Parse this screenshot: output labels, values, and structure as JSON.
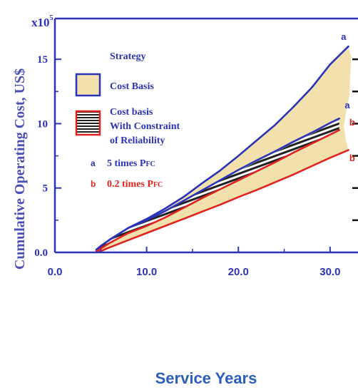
{
  "chart_data": {
    "type": "area",
    "title": "",
    "xlabel": "Service Years",
    "ylabel": "Cumulative Operating Cost, US$",
    "y_multiplier": "x10",
    "y_multiplier_exponent": "5",
    "xlim": [
      0,
      32.5
    ],
    "ylim": [
      0,
      17.5
    ],
    "x_ticks": [
      0,
      10,
      20,
      30
    ],
    "x_tick_labels": [
      "0.0",
      "10.0",
      "20.0",
      "30.0"
    ],
    "y_ticks": [
      0,
      5,
      10,
      15
    ],
    "y_tick_labels": [
      "0.0",
      "5",
      "10",
      "15"
    ],
    "grid": false,
    "legend_position": "top-left",
    "legend": {
      "title": "Strategy",
      "entries": [
        {
          "label": "Cost Basis",
          "style": "filled"
        },
        {
          "label_lines": [
            "Cost basis",
            "With Constraint",
            "of Reliability"
          ],
          "style": "hatched"
        }
      ],
      "notes": [
        {
          "letter": "a",
          "text": "5 times P",
          "sub": "FC",
          "color": "#2b33b8"
        },
        {
          "letter": "b",
          "text": "0.2 times P",
          "sub": "FC",
          "color": "#e0231f"
        }
      ]
    },
    "series": [
      {
        "name": "Cost Basis",
        "kind": "band",
        "color": "#f3e1ad",
        "upper": [
          [
            4.5,
            0.2
          ],
          [
            5,
            0.5
          ],
          [
            6,
            1.0
          ],
          [
            7,
            1.45
          ],
          [
            8,
            1.9
          ],
          [
            10,
            2.6
          ],
          [
            12,
            3.4
          ],
          [
            14,
            4.3
          ],
          [
            16,
            5.35
          ],
          [
            18,
            6.35
          ],
          [
            20,
            7.5
          ],
          [
            22,
            8.7
          ],
          [
            24,
            9.9
          ],
          [
            26,
            11.3
          ],
          [
            28,
            12.8
          ],
          [
            30,
            14.6
          ],
          [
            31,
            15.3
          ],
          [
            32,
            16.0
          ]
        ],
        "lower": [
          [
            4.5,
            0.0
          ],
          [
            5,
            0.1
          ],
          [
            6,
            0.4
          ],
          [
            8,
            0.95
          ],
          [
            10,
            1.5
          ],
          [
            12,
            2.05
          ],
          [
            14,
            2.6
          ],
          [
            16,
            3.15
          ],
          [
            18,
            3.7
          ],
          [
            20,
            4.3
          ],
          [
            22,
            4.85
          ],
          [
            24,
            5.45
          ],
          [
            26,
            6.05
          ],
          [
            28,
            6.7
          ],
          [
            30,
            7.35
          ],
          [
            31,
            7.65
          ],
          [
            32,
            7.95
          ]
        ],
        "right_edge": [
          [
            32,
            16.0
          ],
          [
            32.3,
            15.2
          ],
          [
            32.1,
            12.2
          ],
          [
            31.7,
            10.7
          ],
          [
            31.5,
            9.8
          ],
          [
            31.7,
            8.8
          ],
          [
            32,
            7.95
          ]
        ]
      },
      {
        "name": "Cost basis With Constraint of Reliability",
        "kind": "band",
        "color": "#7a7a7a",
        "upper": [
          [
            4.5,
            0.2
          ],
          [
            5,
            0.5
          ],
          [
            6,
            0.95
          ],
          [
            8,
            1.85
          ],
          [
            10,
            2.45
          ],
          [
            12,
            3.15
          ],
          [
            14,
            3.95
          ],
          [
            16,
            4.75
          ],
          [
            18,
            5.55
          ],
          [
            20,
            6.3
          ],
          [
            22,
            7.05
          ],
          [
            24,
            7.75
          ],
          [
            26,
            8.5
          ],
          [
            28,
            9.2
          ],
          [
            30,
            9.95
          ],
          [
            31,
            10.3
          ]
        ],
        "lower": [
          [
            4.5,
            0.1
          ],
          [
            5,
            0.35
          ],
          [
            6,
            0.8
          ],
          [
            8,
            1.55
          ],
          [
            10,
            2.1
          ],
          [
            12,
            2.75
          ],
          [
            14,
            3.5
          ],
          [
            16,
            4.25
          ],
          [
            18,
            4.95
          ],
          [
            20,
            5.65
          ],
          [
            22,
            6.35
          ],
          [
            24,
            7.05
          ],
          [
            26,
            7.8
          ],
          [
            28,
            8.5
          ],
          [
            30,
            9.2
          ],
          [
            31,
            9.55
          ]
        ]
      },
      {
        "name": "a",
        "kind": "line",
        "color": "#2b33b8",
        "label": "a",
        "x": [
          4.5,
          5,
          6,
          7,
          8,
          10,
          12,
          14,
          16,
          18,
          20,
          22,
          24,
          26,
          28,
          30,
          31,
          32
        ],
        "y": [
          0.2,
          0.5,
          1.0,
          1.45,
          1.9,
          2.6,
          3.4,
          4.3,
          5.35,
          6.35,
          7.5,
          8.7,
          9.9,
          11.3,
          12.8,
          14.6,
          15.3,
          16.0
        ]
      },
      {
        "name": "a",
        "kind": "line",
        "color": "#2b33b8",
        "label": "a",
        "x": [
          4.5,
          5,
          6,
          8,
          10,
          12,
          14,
          16,
          18,
          20,
          22,
          24,
          26,
          28,
          30,
          31
        ],
        "y": [
          0.2,
          0.5,
          1.0,
          1.9,
          2.5,
          3.2,
          4.0,
          4.8,
          5.6,
          6.4,
          7.15,
          7.85,
          8.6,
          9.3,
          10.05,
          10.4
        ]
      },
      {
        "name": "b",
        "kind": "line",
        "color": "#e0231f",
        "label": "b",
        "x": [
          4.5,
          5,
          6,
          8,
          10,
          12,
          14,
          16,
          18,
          20,
          22,
          24,
          26,
          28,
          30,
          31
        ],
        "y": [
          0.05,
          0.3,
          0.75,
          1.5,
          2.05,
          2.7,
          3.45,
          4.2,
          4.9,
          5.6,
          6.3,
          7.0,
          7.75,
          8.45,
          9.15,
          9.5
        ]
      },
      {
        "name": "b",
        "kind": "line",
        "color": "#e0231f",
        "label": "b",
        "x": [
          4.5,
          5,
          6,
          8,
          10,
          12,
          14,
          16,
          18,
          20,
          22,
          24,
          26,
          28,
          30,
          31,
          32
        ],
        "y": [
          0.0,
          0.1,
          0.4,
          0.95,
          1.5,
          2.05,
          2.6,
          3.15,
          3.7,
          4.3,
          4.85,
          5.45,
          6.05,
          6.7,
          7.35,
          7.65,
          7.95
        ]
      }
    ],
    "end_labels": [
      {
        "text": "a",
        "x": 31.2,
        "y": 16.5,
        "color": "#2b33b8"
      },
      {
        "text": "a",
        "x": 31.6,
        "y": 11.2,
        "color": "#2b33b8"
      },
      {
        "text": "b",
        "x": 32.1,
        "y": 9.85,
        "color": "#e0231f"
      },
      {
        "text": "b",
        "x": 32.1,
        "y": 7.1,
        "color": "#e0231f"
      }
    ]
  }
}
